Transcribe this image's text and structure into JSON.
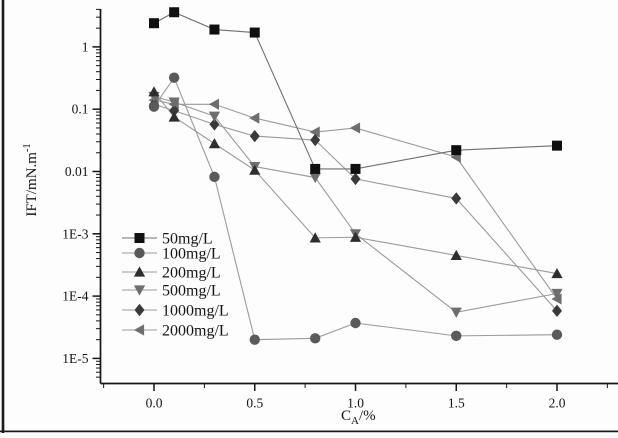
{
  "figure": {
    "background": "#fdfdfd",
    "scan_border_color": "#1a1a1a",
    "axis_color": "#141414",
    "default_line_color": "#9a9a9a"
  },
  "chart_data": {
    "type": "line",
    "title": "",
    "xlabel": "C_A/%",
    "xlabel_parts": {
      "base": "C",
      "sub": "A",
      "suffix": "/%"
    },
    "ylabel": "IFT/mN.m-1",
    "ylabel_parts": {
      "base": "IFT/mN.m",
      "sup": "-1"
    },
    "y_scale": "log",
    "grid": false,
    "ylim": [
      4e-06,
      4
    ],
    "xlim": [
      -0.27,
      2.3
    ],
    "x_ticks": [
      0.0,
      0.5,
      1.0,
      1.5,
      2.0
    ],
    "x_tick_labels": [
      "0.0",
      "0.5",
      "1.0",
      "1.5",
      "2.0"
    ],
    "x_minor_step": 0.25,
    "y_tick_values": [
      1,
      0.1,
      0.01,
      0.001,
      0.0001,
      1e-05
    ],
    "y_tick_labels": [
      "1",
      "0.1",
      "0.01",
      "1E-3",
      "1E-4",
      "1E-5"
    ],
    "legend_position": "inside lower-left",
    "x": [
      0.0,
      0.1,
      0.3,
      0.5,
      0.8,
      1.0,
      1.5,
      2.0
    ],
    "series": [
      {
        "name": "50mg/L",
        "marker": "square",
        "color": "#101010",
        "line_color": "#6f6f6f",
        "values": [
          2.4,
          3.6,
          1.9,
          1.7,
          0.011,
          0.011,
          0.022,
          0.026
        ]
      },
      {
        "name": "100mg/L",
        "marker": "circle",
        "color": "#5a5a5a",
        "line_color": "#9a9a9a",
        "values": [
          0.11,
          0.32,
          0.0082,
          2e-05,
          2.1e-05,
          3.7e-05,
          2.3e-05,
          2.4e-05
        ]
      },
      {
        "name": "200mg/L",
        "marker": "triangle-up",
        "color": "#2e2e2e",
        "line_color": "#9a9a9a",
        "values": [
          0.19,
          0.075,
          0.028,
          0.0105,
          0.00086,
          0.00088,
          0.00045,
          0.00023
        ]
      },
      {
        "name": "500mg/L",
        "marker": "triangle-down",
        "color": "#6e6e6e",
        "line_color": "#9a9a9a",
        "values": [
          0.16,
          0.13,
          0.077,
          0.012,
          0.008,
          0.001,
          5.5e-05,
          0.00011
        ]
      },
      {
        "name": "1000mg/L",
        "marker": "diamond",
        "color": "#3a3a3a",
        "line_color": "#9a9a9a",
        "values": [
          0.12,
          0.095,
          0.057,
          0.037,
          0.032,
          0.0076,
          0.0037,
          5.8e-05
        ]
      },
      {
        "name": "2000mg/L",
        "marker": "triangle-left",
        "color": "#6e6e6e",
        "line_color": "#9a9a9a",
        "values": [
          0.14,
          0.12,
          0.12,
          0.072,
          0.043,
          0.05,
          0.017,
          9e-05
        ]
      }
    ],
    "legend": {
      "rows_y": [
        238,
        253,
        272,
        290,
        310,
        330
      ],
      "line_x1": 122,
      "line_x2": 157,
      "label_x": 162
    }
  }
}
